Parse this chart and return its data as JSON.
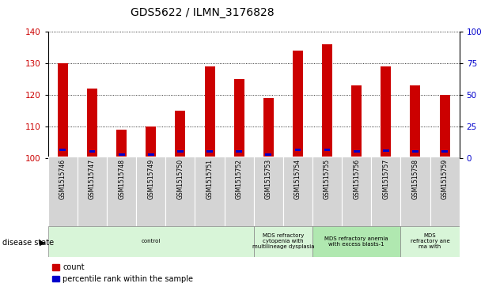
{
  "title": "GDS5622 / ILMN_3176828",
  "samples": [
    "GSM1515746",
    "GSM1515747",
    "GSM1515748",
    "GSM1515749",
    "GSM1515750",
    "GSM1515751",
    "GSM1515752",
    "GSM1515753",
    "GSM1515754",
    "GSM1515755",
    "GSM1515756",
    "GSM1515757",
    "GSM1515758",
    "GSM1515759"
  ],
  "count_values": [
    130,
    122,
    109,
    110,
    115,
    129,
    125,
    119,
    134,
    136,
    123,
    129,
    123,
    120
  ],
  "percentile_values": [
    6.5,
    5.0,
    2.5,
    2.5,
    5.0,
    5.0,
    5.0,
    2.5,
    6.5,
    6.5,
    5.0,
    5.5,
    5.0,
    5.0
  ],
  "ymin": 100,
  "ymax": 140,
  "yticks": [
    100,
    110,
    120,
    130,
    140
  ],
  "right_yticks": [
    0,
    25,
    50,
    75,
    100
  ],
  "bar_color": "#cc0000",
  "percentile_color": "#0000cc",
  "bar_width": 0.35,
  "disease_groups": [
    {
      "label": "control",
      "start": 0,
      "end": 7,
      "color": "#d8f5d8"
    },
    {
      "label": "MDS refractory\ncytopenia with\nmultilineage dysplasia",
      "start": 7,
      "end": 9,
      "color": "#d8f5d8"
    },
    {
      "label": "MDS refractory anemia\nwith excess blasts-1",
      "start": 9,
      "end": 12,
      "color": "#b0e8b0"
    },
    {
      "label": "MDS\nrefractory ane\nma with",
      "start": 12,
      "end": 14,
      "color": "#d8f5d8"
    }
  ],
  "legend_count_label": "count",
  "legend_percentile_label": "percentile rank within the sample",
  "disease_state_label": "disease state",
  "tick_label_color_left": "#cc0000",
  "tick_label_color_right": "#0000cc",
  "title_fontsize": 10,
  "axis_fontsize": 7.5,
  "sample_fontsize": 5.5
}
